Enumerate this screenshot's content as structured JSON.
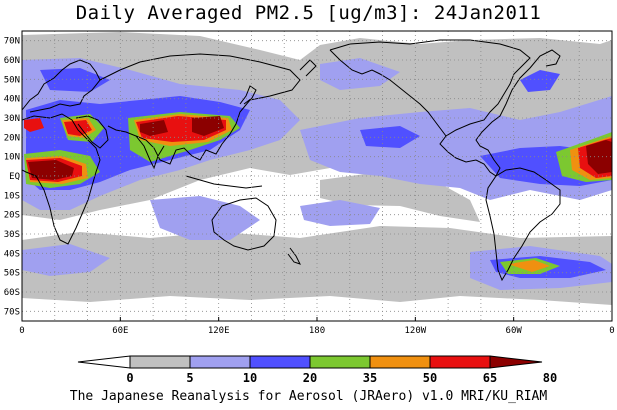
{
  "title": "Daily Averaged PM2.5 [ug/m3]: 24Jan2011",
  "footer": "The Japanese Reanalysis for Aerosol (JRAero) v1.0 MRI/KU_RIAM",
  "map": {
    "projection": "equirectangular",
    "lon_range": [
      0,
      360
    ],
    "lat_range": [
      -75,
      75
    ],
    "lat_ticks": [
      "70N",
      "60N",
      "50N",
      "40N",
      "30N",
      "20N",
      "10N",
      "EQ",
      "10S",
      "20S",
      "30S",
      "40S",
      "50S",
      "60S",
      "70S"
    ],
    "lon_ticks": [
      "0",
      "60E",
      "120E",
      "180",
      "120W",
      "60W",
      "0"
    ],
    "grid": "dotted"
  },
  "legend": {
    "levels": [
      "0",
      "5",
      "10",
      "20",
      "35",
      "50",
      "65",
      "80"
    ],
    "colors": [
      "#ffffff",
      "#c0c0c0",
      "#a0a0f0",
      "#5050ff",
      "#7cc830",
      "#f09010",
      "#e81010",
      "#8c0000"
    ]
  }
}
